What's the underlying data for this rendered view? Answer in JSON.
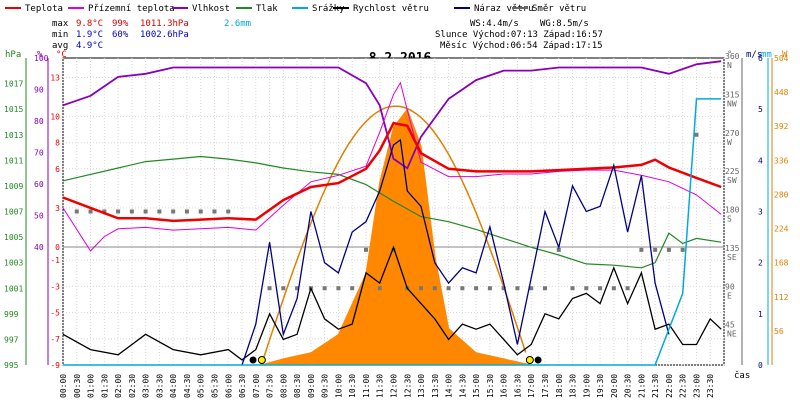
{
  "chart_data": {
    "type": "line",
    "title": "8.2.2016",
    "legend": [
      "Teplota",
      "Přízemní teplota",
      "Vlhkost",
      "Tlak",
      "Srážky",
      "Rychlost větru",
      "Náraz větru",
      "Směr větru"
    ],
    "legend_colors": [
      "#ee0000",
      "#dd00dd",
      "#8800bb",
      "#228822",
      "#00aadd",
      "#000000",
      "#000080",
      "#666666"
    ],
    "stats": {
      "max": {
        "label": "max",
        "temp": "9.8°C",
        "hum": "99%",
        "press": "1011.3hPa",
        "rain": "2.6mm"
      },
      "min": {
        "label": "min",
        "temp": "1.9°C",
        "hum": "60%",
        "press": "1002.6hPa"
      },
      "avg": {
        "label": "avg",
        "temp": "4.9°C"
      }
    },
    "info": {
      "ws": "WS:4.4m/s",
      "wg": "WG:8.5m/s",
      "sun": "Slunce  Východ:07:13  Západ:16:57",
      "moon": "Měsíc  Východ:06:54  Západ:17:15"
    },
    "axes": {
      "hpa_unit": "hPa",
      "hpa_ticks": [
        "1017",
        "1015",
        "1013",
        "1011",
        "1009",
        "1007",
        "1005",
        "1003",
        "1001",
        "999",
        "997",
        "995"
      ],
      "pct_unit": "%",
      "pct_ticks": [
        "100",
        "90",
        "80",
        "70",
        "60",
        "50",
        "40"
      ],
      "temp_unit": "°C",
      "temp_ticks_upper": [
        "13",
        "10",
        "8",
        "6",
        "3",
        "0"
      ],
      "temp_ticks_lower": [
        "-1",
        "-3",
        "-5",
        "-7",
        "-9"
      ],
      "dir_unit": "°",
      "dir_ticks": [
        "360",
        "315",
        "270",
        "225",
        "180",
        "135",
        "90",
        "45"
      ],
      "dir_labels": [
        "N",
        "NW",
        "W",
        "SW",
        "S",
        "SE",
        "E",
        "NE"
      ],
      "ms_unit": "m/s",
      "ms_ticks": [
        "6",
        "5",
        "4",
        "3",
        "2",
        "1",
        "0"
      ],
      "mm_unit": "mm",
      "w_unit": "W",
      "w_ticks": [
        "504",
        "448",
        "392",
        "336",
        "280",
        "224",
        "168",
        "112",
        "56"
      ],
      "x_label": "čas",
      "x_ticks": [
        "00:00",
        "00:30",
        "01:00",
        "01:30",
        "02:00",
        "02:30",
        "03:00",
        "03:30",
        "04:00",
        "04:30",
        "05:00",
        "05:30",
        "06:00",
        "06:30",
        "07:00",
        "07:30",
        "08:00",
        "08:30",
        "09:00",
        "09:30",
        "10:00",
        "10:30",
        "11:00",
        "11:30",
        "12:00",
        "12:30",
        "13:00",
        "13:30",
        "14:00",
        "14:30",
        "15:00",
        "15:30",
        "16:00",
        "16:30",
        "17:00",
        "17:30",
        "18:00",
        "18:30",
        "19:00",
        "19:30",
        "20:00",
        "20:30",
        "21:00",
        "21:30",
        "22:00",
        "22:30",
        "23:00",
        "23:30"
      ]
    },
    "series": [
      {
        "name": "Teplota",
        "x_hours": [
          0,
          1,
          2,
          3,
          4,
          5,
          6,
          7,
          8,
          9,
          10,
          11,
          11.5,
          12,
          12.5,
          13,
          14,
          15,
          16,
          17,
          18,
          19,
          20,
          21,
          21.5,
          22,
          23,
          23.9
        ],
        "values": [
          3.8,
          3.0,
          2.2,
          2.2,
          2.0,
          2.1,
          2.2,
          2.1,
          3.6,
          4.6,
          4.9,
          6.0,
          7.4,
          9.5,
          9.3,
          7.2,
          6.0,
          5.8,
          5.8,
          5.8,
          5.9,
          6.0,
          6.1,
          6.3,
          6.7,
          6.1,
          5.3,
          4.6
        ]
      },
      {
        "name": "Přízemní teplota",
        "x_hours": [
          0,
          1,
          1.5,
          2,
          3,
          4,
          5,
          6,
          7,
          8,
          9,
          10,
          11,
          11.5,
          12,
          12.25,
          12.5,
          13,
          14,
          15,
          16,
          17,
          18,
          19,
          20,
          21,
          22,
          23,
          23.9
        ],
        "values": [
          3.0,
          -0.3,
          0.8,
          1.4,
          1.5,
          1.3,
          1.4,
          1.5,
          1.3,
          3.2,
          5.0,
          5.5,
          6.2,
          8.8,
          11.7,
          12.6,
          10.5,
          6.5,
          5.4,
          5.4,
          5.6,
          5.6,
          5.8,
          5.9,
          5.9,
          5.5,
          5.0,
          4.0,
          2.5
        ]
      },
      {
        "name": "Vlhkost",
        "x_hours": [
          0,
          1,
          2,
          3,
          4,
          5,
          6,
          7,
          8,
          9,
          10,
          11,
          11.5,
          12,
          12.5,
          13,
          14,
          15,
          16,
          17,
          18,
          19,
          20,
          21,
          22,
          23,
          23.9
        ],
        "values": [
          85,
          88,
          94,
          95,
          97,
          97,
          97,
          97,
          97,
          97,
          97,
          92,
          85,
          68,
          65,
          75,
          87,
          93,
          96,
          96,
          97,
          97,
          97,
          97,
          95,
          98,
          99
        ]
      },
      {
        "name": "Tlak",
        "x_hours": [
          0,
          1,
          2,
          3,
          4,
          5,
          6,
          7,
          8,
          9,
          10,
          11,
          12,
          13,
          14,
          15,
          16,
          17,
          18,
          19,
          20,
          21,
          21.5,
          22,
          22.5,
          23,
          23.9
        ],
        "values": [
          1009.4,
          1009.9,
          1010.4,
          1010.9,
          1011.1,
          1011.3,
          1011.1,
          1010.8,
          1010.4,
          1010.1,
          1009.9,
          1009.1,
          1007.8,
          1006.6,
          1006.2,
          1005.6,
          1004.9,
          1004.2,
          1003.6,
          1002.9,
          1002.8,
          1002.6,
          1003.0,
          1005.3,
          1004.5,
          1004.9,
          1004.6
        ]
      },
      {
        "name": "Srážky",
        "x_hours": [
          0,
          21.5,
          22.5,
          23,
          23.9
        ],
        "values": [
          0,
          0,
          0.7,
          2.6,
          2.6
        ]
      },
      {
        "name": "Rychlost větru",
        "x_hours": [
          0,
          1,
          2,
          3,
          4,
          5,
          6,
          6.5,
          7,
          7.5,
          8,
          8.5,
          9,
          9.5,
          10,
          10.5,
          11,
          11.5,
          12,
          12.5,
          13,
          13.5,
          14,
          14.5,
          15,
          15.5,
          16,
          16.5,
          17,
          17.5,
          18,
          18.5,
          19,
          19.5,
          20,
          20.5,
          21,
          21.5,
          22,
          22.5,
          23,
          23.5,
          23.9
        ],
        "values": [
          0.6,
          0.3,
          0.2,
          0.6,
          0.3,
          0.2,
          0.3,
          0.1,
          0.3,
          1.0,
          0.5,
          0.6,
          1.5,
          0.9,
          0.7,
          0.8,
          1.8,
          1.6,
          2.3,
          1.5,
          1.2,
          0.9,
          0.5,
          0.8,
          0.7,
          0.8,
          0.5,
          0.2,
          0.4,
          1.0,
          0.9,
          1.3,
          1.4,
          1.2,
          1.9,
          1.2,
          1.8,
          0.7,
          0.8,
          0.4,
          0.4,
          0.9,
          0.7
        ]
      },
      {
        "name": "Náraz větru",
        "x_hours": [
          6.5,
          7,
          7.5,
          8,
          8.5,
          9,
          9.5,
          10,
          10.5,
          11,
          11.5,
          12,
          12.25,
          12.5,
          13,
          13.5,
          14,
          14.5,
          15,
          15.5,
          16,
          16.5,
          17,
          17.5,
          18,
          18.5,
          19,
          19.5,
          20,
          20.5,
          21,
          21.5,
          22
        ],
        "values": [
          0,
          0.8,
          2.4,
          0.6,
          1.3,
          3.0,
          2.0,
          1.8,
          2.6,
          2.8,
          3.4,
          4.3,
          4.4,
          3.4,
          3.1,
          2.0,
          1.6,
          1.9,
          1.8,
          2.7,
          1.6,
          0.4,
          1.7,
          3.0,
          2.3,
          3.5,
          3.0,
          3.1,
          3.9,
          2.6,
          3.7,
          1.6,
          0.6
        ]
      },
      {
        "name": "Směr větru",
        "x_hours": [
          0.5,
          1,
          1.5,
          2,
          2.5,
          3,
          3.5,
          4,
          4.5,
          5,
          5.5,
          6,
          7.5,
          8,
          8.5,
          9,
          9.5,
          10,
          10.5,
          11,
          11.5,
          12,
          12.5,
          13,
          13.5,
          14,
          14.5,
          15,
          15.5,
          16,
          16.5,
          17,
          17.5,
          18,
          18.5,
          19,
          19.5,
          20,
          20.5,
          21,
          21.5,
          22,
          22.5,
          23
        ],
        "values": [
          180,
          180,
          180,
          180,
          180,
          180,
          180,
          180,
          180,
          180,
          180,
          180,
          90,
          90,
          90,
          90,
          90,
          90,
          90,
          135,
          90,
          135,
          90,
          90,
          90,
          90,
          90,
          90,
          90,
          90,
          90,
          90,
          90,
          135,
          90,
          90,
          90,
          90,
          90,
          135,
          135,
          135,
          135,
          270
        ]
      }
    ],
    "solar_radiation": {
      "unit": "W",
      "x_hours": [
        7.2,
        8,
        9,
        10,
        11,
        11.5,
        12,
        12.5,
        13,
        13.5,
        14,
        15,
        16,
        17
      ],
      "values": [
        0,
        10,
        20,
        50,
        150,
        300,
        390,
        420,
        360,
        180,
        60,
        20,
        10,
        0
      ]
    },
    "ylim": {
      "temp": [
        -9,
        14.5
      ],
      "hpa": [
        995,
        1019
      ],
      "pct": [
        40,
        100
      ],
      "dir": [
        0,
        360
      ],
      "ms": [
        0,
        6
      ],
      "w": [
        0,
        504
      ]
    },
    "grid": true,
    "legend_position": "top"
  }
}
